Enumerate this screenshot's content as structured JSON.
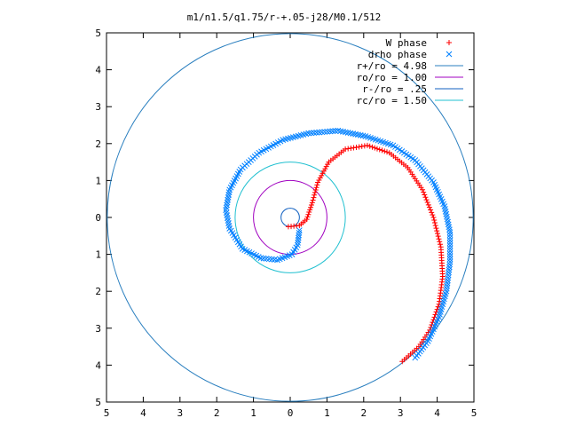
{
  "chart_data": {
    "type": "scatter",
    "title": "m1/n1.5/q1.75/r-+.05-j28/M0.1/512",
    "xlabel": "",
    "ylabel": "",
    "xlim": [
      -5,
      5
    ],
    "ylim": [
      -5,
      5
    ],
    "x_tick_labels": [
      "5",
      "4",
      "3",
      "2",
      "1",
      "0",
      "1",
      "2",
      "3",
      "4",
      "5"
    ],
    "y_tick_labels": [
      "5",
      "4",
      "3",
      "2",
      "1",
      "0",
      "1",
      "2",
      "3",
      "4",
      "5"
    ],
    "grid": false,
    "legend_position": "top-right",
    "series": [
      {
        "name": "W phase",
        "kind": "points",
        "marker": "+",
        "color": "#ff0000",
        "points": [
          [
            -0.05,
            -0.25
          ],
          [
            0.25,
            -0.22
          ],
          [
            0.45,
            -0.05
          ],
          [
            0.6,
            0.4
          ],
          [
            0.75,
            0.95
          ],
          [
            1.05,
            1.5
          ],
          [
            1.5,
            1.85
          ],
          [
            2.1,
            1.95
          ],
          [
            2.7,
            1.75
          ],
          [
            3.2,
            1.35
          ],
          [
            3.6,
            0.75
          ],
          [
            3.9,
            0.0
          ],
          [
            4.1,
            -0.8
          ],
          [
            4.15,
            -1.6
          ],
          [
            4.05,
            -2.35
          ],
          [
            3.8,
            -3.05
          ],
          [
            3.5,
            -3.5
          ],
          [
            3.05,
            -3.9
          ]
        ]
      },
      {
        "name": "drho phase",
        "kind": "points",
        "marker": "x",
        "color": "#0080ff",
        "points": [
          [
            0.25,
            -0.35
          ],
          [
            0.2,
            -0.75
          ],
          [
            0.05,
            -1.0
          ],
          [
            -0.35,
            -1.15
          ],
          [
            -0.8,
            -1.1
          ],
          [
            -1.3,
            -0.85
          ],
          [
            -1.65,
            -0.3
          ],
          [
            -1.75,
            0.2
          ],
          [
            -1.65,
            0.75
          ],
          [
            -1.35,
            1.3
          ],
          [
            -0.85,
            1.75
          ],
          [
            -0.2,
            2.1
          ],
          [
            0.5,
            2.28
          ],
          [
            1.3,
            2.35
          ],
          [
            2.05,
            2.2
          ],
          [
            2.8,
            1.95
          ],
          [
            3.4,
            1.55
          ],
          [
            3.9,
            0.95
          ],
          [
            4.2,
            0.3
          ],
          [
            4.35,
            -0.4
          ],
          [
            4.35,
            -1.2
          ],
          [
            4.25,
            -2.0
          ],
          [
            4.05,
            -2.7
          ],
          [
            3.75,
            -3.35
          ],
          [
            3.4,
            -3.8
          ]
        ]
      },
      {
        "name": "r+/ro = 4.98",
        "label": "r+/ro = 4.98",
        "kind": "circle",
        "radius": 4.98,
        "color": "#2a7fbf"
      },
      {
        "name": "ro/ro = 1.00",
        "label": "ro/ro = 1.00",
        "kind": "circle",
        "radius": 1.0,
        "color": "#a000c0"
      },
      {
        "name": "r-/ro = .25",
        "label": "r-/ro = .25",
        "kind": "circle",
        "radius": 0.25,
        "color": "#1060c0"
      },
      {
        "name": "rc/ro = 1.50",
        "label": "rc/ro = 1.50",
        "kind": "circle",
        "radius": 1.5,
        "color": "#20c0d0"
      }
    ]
  }
}
